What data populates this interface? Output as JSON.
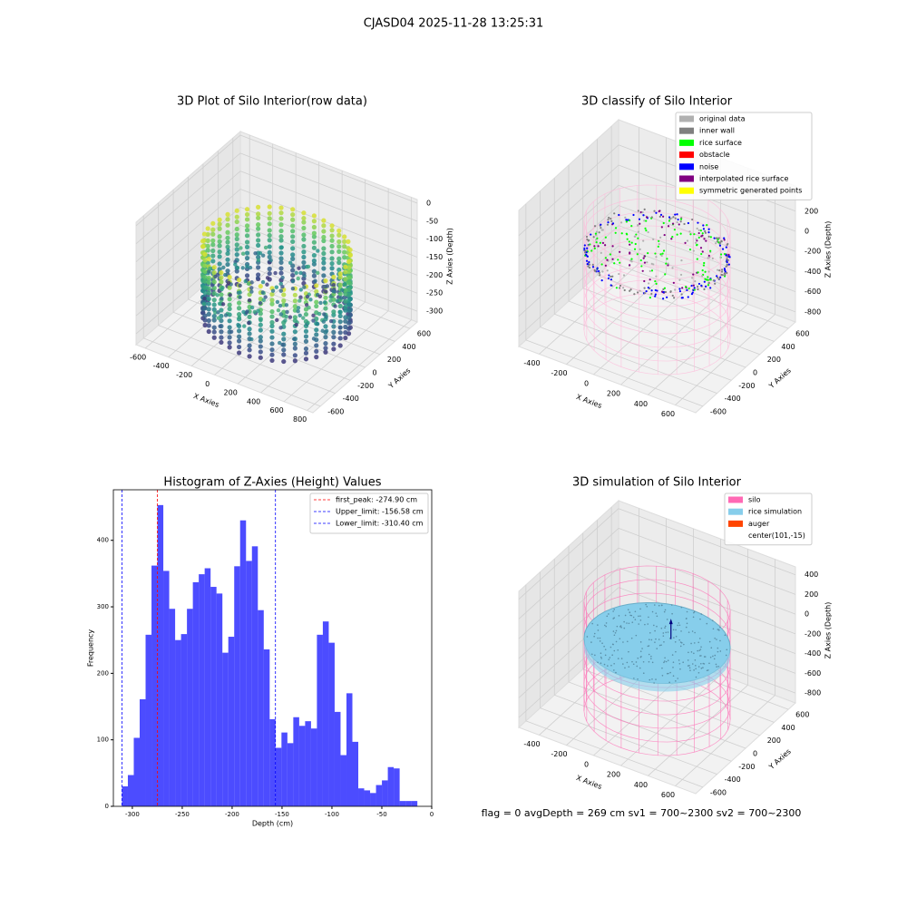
{
  "title": "CJASD04 2025-11-28 13:25:31",
  "footer": "flag = 0     avgDepth = 269 cm  sv1 = 700~2300  sv2 = 700~2300",
  "chart_data": [
    {
      "type": "scatter3d",
      "title": "3D Plot of Silo Interior(row data)",
      "xlabel": "X Axies",
      "ylabel": "Y Axies",
      "zlabel": "Z Axies (Depth)",
      "xlim": [
        -680,
        850
      ],
      "ylim": [
        -700,
        700
      ],
      "zlim": [
        -330,
        10
      ],
      "xticks": [
        -600,
        -400,
        -200,
        0,
        200,
        400,
        600,
        800
      ],
      "yticks": [
        -600,
        -400,
        -200,
        0,
        200,
        400,
        600
      ],
      "zticks": [
        -300,
        -250,
        -200,
        -150,
        -100,
        -50,
        0
      ]
    },
    {
      "type": "classify3d",
      "title": "3D classify of Silo Interior",
      "xlabel": "X Axies",
      "ylabel": "Y Axies",
      "zlabel": "Z Axies (Depth)",
      "xlim": [
        -550,
        750
      ],
      "ylim": [
        -700,
        700
      ],
      "zlim": [
        -900,
        450
      ],
      "xticks": [
        -400,
        -200,
        0,
        200,
        400,
        600
      ],
      "yticks": [
        -600,
        -400,
        -200,
        0,
        200,
        400,
        600
      ],
      "zticks": [
        -800,
        -600,
        -400,
        -200,
        0,
        200
      ],
      "legend": [
        {
          "name": "original data",
          "color": "#b0b0b0"
        },
        {
          "name": "inner wall",
          "color": "#808080"
        },
        {
          "name": "rice surface",
          "color": "#00ff00"
        },
        {
          "name": "obstacle",
          "color": "#ff0000"
        },
        {
          "name": "noise",
          "color": "#0000ff"
        },
        {
          "name": "interpolated rice surface",
          "color": "#800080"
        },
        {
          "name": "symmetric generated points",
          "color": "#ffff00"
        }
      ]
    },
    {
      "type": "histogram",
      "title": "Histogram of Z-Axies (Height) Values",
      "xlabel": "Depth (cm)",
      "ylabel": "Frequency",
      "color": "#0000ff",
      "alpha": 0.7,
      "xlim": [
        -319,
        0
      ],
      "ylim": [
        0,
        476
      ],
      "xticks": [
        -300,
        -250,
        -200,
        -150,
        -100,
        -50,
        0
      ],
      "yticks": [
        0,
        100,
        200,
        300,
        400
      ],
      "bins": [
        -310.4,
        -304.48,
        -298.56,
        -292.64,
        -286.72,
        -280.8,
        -274.88,
        -268.96,
        -263.04,
        -257.12,
        -251.2,
        -245.28,
        -239.36,
        -233.44,
        -227.52,
        -221.6,
        -215.68,
        -209.76,
        -203.84,
        -197.92,
        -192.0,
        -186.08,
        -180.16,
        -174.24,
        -168.32,
        -162.4,
        -156.48,
        -150.56,
        -144.64,
        -138.72,
        -132.8,
        -126.88,
        -120.96,
        -115.04,
        -109.12,
        -103.2,
        -97.28,
        -91.36,
        -85.44,
        -79.52,
        -73.6,
        -67.68,
        -61.76,
        -55.84,
        -49.92,
        -44.0,
        -38.08,
        -32.16,
        -26.24,
        -20.32,
        -14.4
      ],
      "values": [
        30,
        47,
        103,
        161,
        258,
        362,
        453,
        354,
        297,
        250,
        259,
        297,
        337,
        349,
        358,
        330,
        320,
        231,
        255,
        361,
        430,
        369,
        391,
        295,
        236,
        131,
        88,
        111,
        95,
        134,
        121,
        128,
        117,
        258,
        278,
        246,
        142,
        77,
        170,
        97,
        27,
        24,
        20,
        32,
        39,
        59,
        57,
        8,
        8,
        8
      ],
      "vlines": [
        {
          "name": "first_peak: -274.90 cm",
          "value": -274.9,
          "color": "#ff0000"
        },
        {
          "name": "Upper_limit: -156.58 cm",
          "value": -156.58,
          "color": "#0000ff"
        },
        {
          "name": "Lower_limit: -310.40 cm",
          "value": -310.4,
          "color": "#0000ff"
        }
      ],
      "legend": "upper right"
    },
    {
      "type": "simulation3d",
      "title": "3D simulation of Silo Interior",
      "xlabel": "X Axies",
      "ylabel": "Y Axies",
      "zlabel": "Z Axies (Depth)",
      "xlim": [
        -550,
        750
      ],
      "ylim": [
        -700,
        700
      ],
      "zlim": [
        -900,
        480
      ],
      "xticks": [
        -400,
        -200,
        0,
        200,
        400,
        600
      ],
      "yticks": [
        -600,
        -400,
        -200,
        0,
        200,
        400,
        600
      ],
      "zticks": [
        -800,
        -600,
        -400,
        -200,
        0,
        200,
        400
      ],
      "legend": [
        {
          "name": "silo",
          "color": "#ff69b4"
        },
        {
          "name": "rice simulation",
          "color": "#87ceeb"
        },
        {
          "name": "auger",
          "color": "#ff4500"
        },
        {
          "name": "center(101,-15)"
        }
      ]
    }
  ]
}
